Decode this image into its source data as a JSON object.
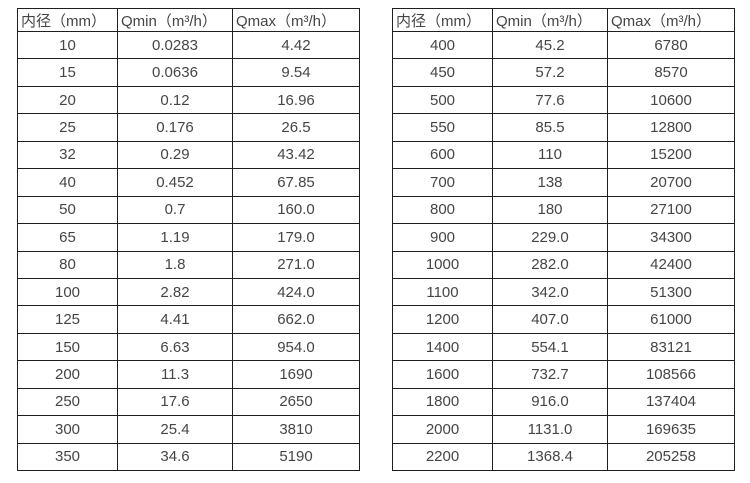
{
  "page": {
    "background_color": "#ffffff",
    "text_color": "#454545",
    "border_color": "#1f1f1f"
  },
  "column_semantics": [
    "diameter",
    "qmin",
    "qmax"
  ],
  "tables": [
    {
      "name": "small-diameter-flow-table",
      "headers": [
        "内径（mm）",
        "Qmin（m³/h）",
        "Qmax（m³/h）"
      ],
      "rows": [
        [
          "10",
          "0.0283",
          "4.42"
        ],
        [
          "15",
          "0.0636",
          "9.54"
        ],
        [
          "20",
          "0.12",
          "16.96"
        ],
        [
          "25",
          "0.176",
          "26.5"
        ],
        [
          "32",
          "0.29",
          "43.42"
        ],
        [
          "40",
          "0.452",
          "67.85"
        ],
        [
          "50",
          "0.7",
          "160.0"
        ],
        [
          "65",
          "1.19",
          "179.0"
        ],
        [
          "80",
          "1.8",
          "271.0"
        ],
        [
          "100",
          "2.82",
          "424.0"
        ],
        [
          "125",
          "4.41",
          "662.0"
        ],
        [
          "150",
          "6.63",
          "954.0"
        ],
        [
          "200",
          "11.3",
          "1690"
        ],
        [
          "250",
          "17.6",
          "2650"
        ],
        [
          "300",
          "25.4",
          "3810"
        ],
        [
          "350",
          "34.6",
          "5190"
        ]
      ]
    },
    {
      "name": "large-diameter-flow-table",
      "headers": [
        "内径（mm）",
        "Qmin（m³/h）",
        "Qmax（m³/h）"
      ],
      "rows": [
        [
          "400",
          "45.2",
          "6780"
        ],
        [
          "450",
          "57.2",
          "8570"
        ],
        [
          "500",
          "77.6",
          "10600"
        ],
        [
          "550",
          "85.5",
          "12800"
        ],
        [
          "600",
          "110",
          "15200"
        ],
        [
          "700",
          "138",
          "20700"
        ],
        [
          "800",
          "180",
          "27100"
        ],
        [
          "900",
          "229.0",
          "34300"
        ],
        [
          "1000",
          "282.0",
          "42400"
        ],
        [
          "1100",
          "342.0",
          "51300"
        ],
        [
          "1200",
          "407.0",
          "61000"
        ],
        [
          "1400",
          "554.1",
          "83121"
        ],
        [
          "1600",
          "732.7",
          "108566"
        ],
        [
          "1800",
          "916.0",
          "137404"
        ],
        [
          "2000",
          "1131.0",
          "169635"
        ],
        [
          "2200",
          "1368.4",
          "205258"
        ]
      ]
    }
  ]
}
